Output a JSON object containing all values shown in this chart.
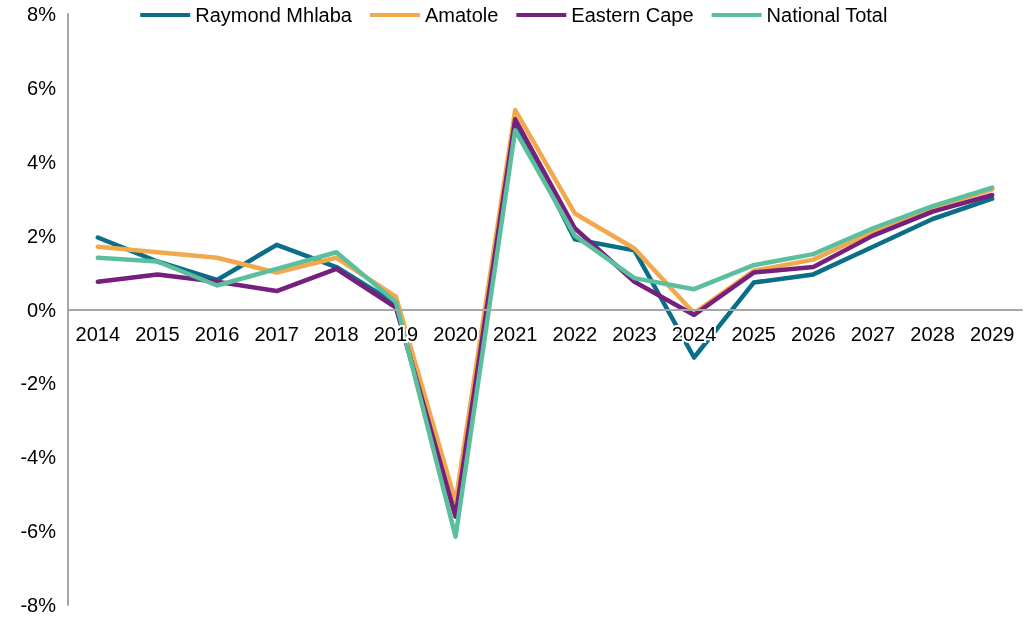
{
  "chart_data": {
    "type": "line",
    "categories": [
      "2014",
      "2015",
      "2016",
      "2017",
      "2018",
      "2019",
      "2020",
      "2021",
      "2022",
      "2023",
      "2024",
      "2025",
      "2026",
      "2027",
      "2028",
      "2029"
    ],
    "series": [
      {
        "name": "Raymond Mhlaba",
        "color": "#0b6e87",
        "values": [
          1.95,
          1.3,
          0.8,
          1.75,
          1.15,
          0.15,
          -5.6,
          5.1,
          1.9,
          1.6,
          -1.3,
          0.73,
          0.95,
          1.7,
          2.45,
          3.0
        ]
      },
      {
        "name": "Amatole",
        "color": "#f2a84c",
        "values": [
          1.7,
          1.55,
          1.4,
          1.0,
          1.4,
          0.35,
          -5.2,
          5.4,
          2.6,
          1.65,
          -0.1,
          1.05,
          1.35,
          2.1,
          2.75,
          3.25
        ]
      },
      {
        "name": "Eastern Cape",
        "color": "#761f7c",
        "values": [
          0.75,
          0.95,
          0.75,
          0.5,
          1.1,
          0.05,
          -5.6,
          5.15,
          2.2,
          0.75,
          -0.15,
          1.0,
          1.15,
          2.0,
          2.65,
          3.1
        ]
      },
      {
        "name": "National Total",
        "color": "#5bbf9e",
        "values": [
          1.4,
          1.3,
          0.65,
          1.1,
          1.55,
          0.2,
          -6.15,
          4.85,
          2.0,
          0.85,
          0.55,
          1.2,
          1.5,
          2.2,
          2.8,
          3.3
        ]
      }
    ],
    "ylim": [
      -8,
      8
    ],
    "yticks": [
      {
        "value": -8,
        "label": "-8%"
      },
      {
        "value": -6,
        "label": "-6%"
      },
      {
        "value": -4,
        "label": "-4%"
      },
      {
        "value": -2,
        "label": "-2%"
      },
      {
        "value": 0,
        "label": "0%"
      },
      {
        "value": 2,
        "label": "2%"
      },
      {
        "value": 4,
        "label": "4%"
      },
      {
        "value": 6,
        "label": "6%"
      },
      {
        "value": 8,
        "label": "8%"
      }
    ],
    "grid": false,
    "legend": "top",
    "marker": "none",
    "line_style": "solid"
  }
}
